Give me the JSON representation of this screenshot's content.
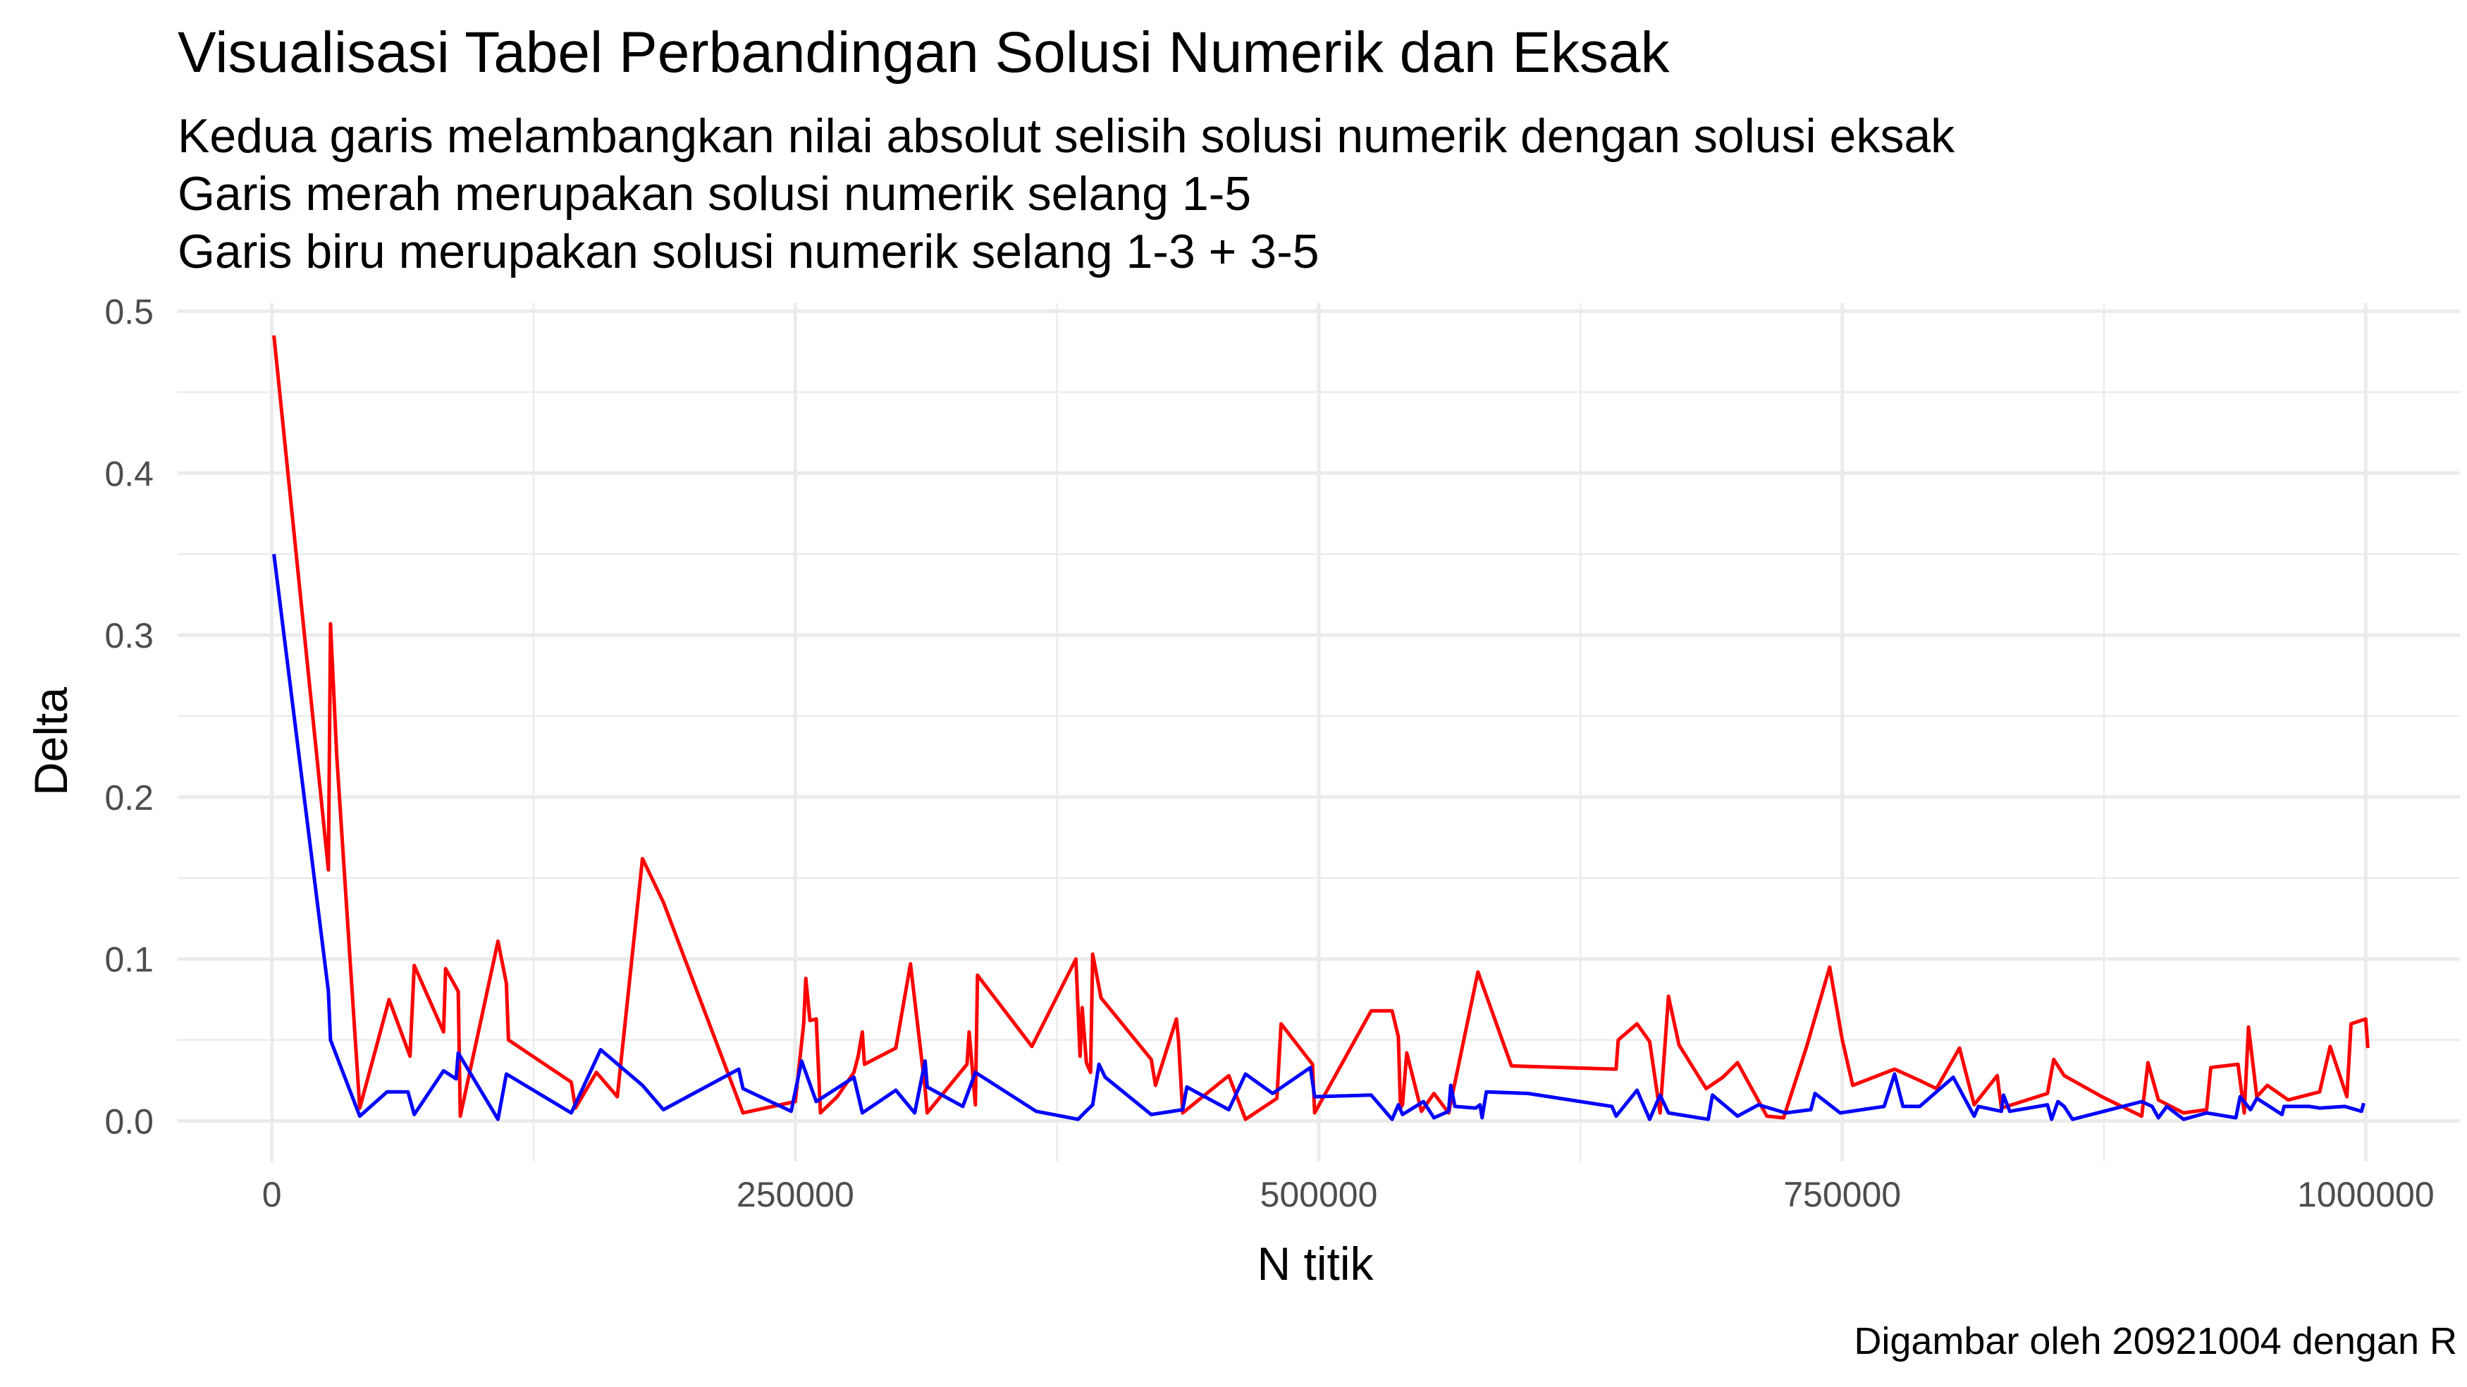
{
  "chart_data": {
    "type": "line",
    "title": "Visualisasi Tabel Perbandingan Solusi Numerik dan Eksak",
    "subtitle": [
      "Kedua garis melambangkan nilai absolut selisih solusi numerik dengan solusi eksak",
      "Garis merah merupakan solusi numerik selang 1-5",
      "Garis biru merupakan solusi numerik selang 1-3 + 3-5"
    ],
    "caption": "Digambar oleh 20921004 dengan R",
    "xlabel": "N titik",
    "ylabel": "Delta",
    "xlim": [
      -45000,
      1045000
    ],
    "ylim": [
      -0.025,
      0.505
    ],
    "x_ticks": [
      0,
      250000,
      500000,
      750000,
      1000000
    ],
    "x_tick_labels": [
      "0",
      "250000",
      "500000",
      "750000",
      "1000000"
    ],
    "y_ticks": [
      0.0,
      0.1,
      0.2,
      0.3,
      0.4,
      0.5
    ],
    "y_tick_labels": [
      "0.0",
      "0.1",
      "0.2",
      "0.3",
      "0.4",
      "0.5"
    ],
    "grid": true,
    "legend": "none",
    "series": [
      {
        "color": "#ff0000",
        "points": [
          [
            1000,
            0.485
          ],
          [
            27000,
            0.155
          ],
          [
            28000,
            0.307
          ],
          [
            31000,
            0.225
          ],
          [
            42000,
            0.008
          ],
          [
            56000,
            0.075
          ],
          [
            66000,
            0.04
          ],
          [
            68000,
            0.096
          ],
          [
            82000,
            0.055
          ],
          [
            83000,
            0.094
          ],
          [
            89000,
            0.08
          ],
          [
            90000,
            0.003
          ],
          [
            108000,
            0.111
          ],
          [
            112000,
            0.085
          ],
          [
            113000,
            0.05
          ],
          [
            143000,
            0.024
          ],
          [
            145000,
            0.008
          ],
          [
            155000,
            0.03
          ],
          [
            165000,
            0.015
          ],
          [
            177000,
            0.162
          ],
          [
            187000,
            0.135
          ],
          [
            225000,
            0.005
          ],
          [
            250000,
            0.012
          ],
          [
            254000,
            0.06
          ],
          [
            255000,
            0.088
          ],
          [
            257000,
            0.062
          ],
          [
            260000,
            0.063
          ],
          [
            262000,
            0.005
          ],
          [
            270000,
            0.015
          ],
          [
            278000,
            0.03
          ],
          [
            280000,
            0.04
          ],
          [
            282000,
            0.055
          ],
          [
            283000,
            0.035
          ],
          [
            298000,
            0.045
          ],
          [
            305000,
            0.097
          ],
          [
            312000,
            0.02
          ],
          [
            313000,
            0.005
          ],
          [
            332000,
            0.035
          ],
          [
            333000,
            0.055
          ],
          [
            336000,
            0.01
          ],
          [
            337000,
            0.09
          ],
          [
            363000,
            0.046
          ],
          [
            384000,
            0.1
          ],
          [
            386000,
            0.04
          ],
          [
            387000,
            0.07
          ],
          [
            389000,
            0.036
          ],
          [
            391000,
            0.03
          ],
          [
            392000,
            0.103
          ],
          [
            396000,
            0.076
          ],
          [
            420000,
            0.038
          ],
          [
            422000,
            0.022
          ],
          [
            432000,
            0.063
          ],
          [
            433000,
            0.05
          ],
          [
            435000,
            0.005
          ],
          [
            457000,
            0.028
          ],
          [
            465000,
            0.001
          ],
          [
            480000,
            0.014
          ],
          [
            482000,
            0.06
          ],
          [
            497000,
            0.035
          ],
          [
            498000,
            0.005
          ],
          [
            525000,
            0.068
          ],
          [
            535000,
            0.068
          ],
          [
            538000,
            0.052
          ],
          [
            539000,
            0.008
          ],
          [
            540000,
            0.01
          ],
          [
            542000,
            0.042
          ],
          [
            549000,
            0.006
          ],
          [
            555000,
            0.017
          ],
          [
            562000,
            0.005
          ],
          [
            576000,
            0.092
          ],
          [
            592000,
            0.034
          ],
          [
            642000,
            0.032
          ],
          [
            643000,
            0.05
          ],
          [
            652000,
            0.06
          ],
          [
            658000,
            0.049
          ],
          [
            663000,
            0.005
          ],
          [
            667000,
            0.077
          ],
          [
            672000,
            0.047
          ],
          [
            685000,
            0.02
          ],
          [
            693000,
            0.027
          ],
          [
            700000,
            0.036
          ],
          [
            714000,
            0.003
          ],
          [
            722000,
            0.002
          ],
          [
            733000,
            0.046
          ],
          [
            744000,
            0.095
          ],
          [
            750000,
            0.05
          ],
          [
            755000,
            0.022
          ],
          [
            775000,
            0.032
          ],
          [
            787000,
            0.025
          ],
          [
            795000,
            0.02
          ],
          [
            806000,
            0.045
          ],
          [
            813000,
            0.01
          ],
          [
            824000,
            0.028
          ],
          [
            826000,
            0.008
          ],
          [
            848000,
            0.017
          ],
          [
            851000,
            0.038
          ],
          [
            856000,
            0.028
          ],
          [
            874000,
            0.015
          ],
          [
            893000,
            0.003
          ],
          [
            896000,
            0.036
          ],
          [
            901000,
            0.013
          ],
          [
            913000,
            0.005
          ],
          [
            924000,
            0.007
          ],
          [
            926000,
            0.033
          ],
          [
            939000,
            0.035
          ],
          [
            942000,
            0.005
          ],
          [
            944000,
            0.058
          ],
          [
            948000,
            0.015
          ],
          [
            953000,
            0.022
          ],
          [
            963000,
            0.013
          ],
          [
            978000,
            0.018
          ],
          [
            983000,
            0.046
          ],
          [
            991000,
            0.015
          ],
          [
            993000,
            0.06
          ],
          [
            1000000,
            0.063
          ],
          [
            1001000,
            0.045
          ]
        ]
      },
      {
        "color": "#0000ff",
        "points": [
          [
            1000,
            0.35
          ],
          [
            27000,
            0.08
          ],
          [
            28000,
            0.05
          ],
          [
            42000,
            0.003
          ],
          [
            55000,
            0.018
          ],
          [
            65000,
            0.018
          ],
          [
            68000,
            0.004
          ],
          [
            82000,
            0.031
          ],
          [
            88000,
            0.026
          ],
          [
            89000,
            0.042
          ],
          [
            108000,
            0.001
          ],
          [
            112000,
            0.029
          ],
          [
            143000,
            0.005
          ],
          [
            157000,
            0.044
          ],
          [
            177000,
            0.022
          ],
          [
            187000,
            0.007
          ],
          [
            223000,
            0.032
          ],
          [
            225000,
            0.02
          ],
          [
            248000,
            0.006
          ],
          [
            253000,
            0.037
          ],
          [
            260000,
            0.012
          ],
          [
            278000,
            0.027
          ],
          [
            282000,
            0.005
          ],
          [
            298000,
            0.019
          ],
          [
            307000,
            0.005
          ],
          [
            312000,
            0.037
          ],
          [
            313000,
            0.021
          ],
          [
            330000,
            0.009
          ],
          [
            336000,
            0.03
          ],
          [
            365000,
            0.006
          ],
          [
            385000,
            0.001
          ],
          [
            388000,
            0.005
          ],
          [
            392000,
            0.01
          ],
          [
            395000,
            0.035
          ],
          [
            398000,
            0.027
          ],
          [
            420000,
            0.004
          ],
          [
            435000,
            0.007
          ],
          [
            437000,
            0.021
          ],
          [
            457000,
            0.007
          ],
          [
            465000,
            0.029
          ],
          [
            478000,
            0.017
          ],
          [
            496000,
            0.033
          ],
          [
            498000,
            0.015
          ],
          [
            525000,
            0.016
          ],
          [
            535000,
            0.001
          ],
          [
            538000,
            0.01
          ],
          [
            540000,
            0.004
          ],
          [
            550000,
            0.012
          ],
          [
            555000,
            0.002
          ],
          [
            562000,
            0.006
          ],
          [
            563000,
            0.022
          ],
          [
            565000,
            0.009
          ],
          [
            575000,
            0.008
          ],
          [
            577000,
            0.01
          ],
          [
            578000,
            0.002
          ],
          [
            580000,
            0.018
          ],
          [
            600000,
            0.017
          ],
          [
            640000,
            0.009
          ],
          [
            642000,
            0.003
          ],
          [
            652000,
            0.019
          ],
          [
            658000,
            0.001
          ],
          [
            663000,
            0.016
          ],
          [
            667000,
            0.005
          ],
          [
            686000,
            0.001
          ],
          [
            688000,
            0.016
          ],
          [
            700000,
            0.003
          ],
          [
            710000,
            0.01
          ],
          [
            723000,
            0.005
          ],
          [
            735000,
            0.007
          ],
          [
            737000,
            0.017
          ],
          [
            749000,
            0.005
          ],
          [
            770000,
            0.009
          ],
          [
            775000,
            0.029
          ],
          [
            779000,
            0.009
          ],
          [
            787000,
            0.009
          ],
          [
            803000,
            0.027
          ],
          [
            813000,
            0.003
          ],
          [
            815000,
            0.009
          ],
          [
            826000,
            0.006
          ],
          [
            827000,
            0.016
          ],
          [
            830000,
            0.006
          ],
          [
            848000,
            0.01
          ],
          [
            850000,
            0.001
          ],
          [
            853000,
            0.012
          ],
          [
            856000,
            0.009
          ],
          [
            860000,
            0.001
          ],
          [
            881000,
            0.008
          ],
          [
            893000,
            0.012
          ],
          [
            898000,
            0.009
          ],
          [
            901000,
            0.002
          ],
          [
            905000,
            0.009
          ],
          [
            913000,
            0.001
          ],
          [
            924000,
            0.005
          ],
          [
            938000,
            0.002
          ],
          [
            940000,
            0.015
          ],
          [
            945000,
            0.007
          ],
          [
            948000,
            0.014
          ],
          [
            960000,
            0.004
          ],
          [
            961000,
            0.009
          ],
          [
            973000,
            0.009
          ],
          [
            978000,
            0.008
          ],
          [
            990000,
            0.009
          ],
          [
            998000,
            0.006
          ],
          [
            999000,
            0.011
          ]
        ]
      }
    ]
  }
}
